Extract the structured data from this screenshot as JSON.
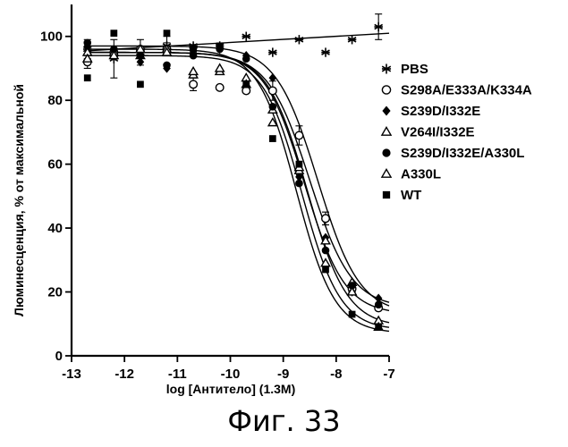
{
  "caption": "Фиг. 33",
  "chart_data": {
    "type": "scatter",
    "xlabel": "log [Антитело] (1.3M)",
    "ylabel": "Люминесценция, % от максимальной",
    "xlim": [
      -13,
      -7
    ],
    "ylim": [
      0,
      110
    ],
    "xticks": [
      -13,
      -12,
      -11,
      -10,
      -9,
      -8,
      -7
    ],
    "xtick_labels": [
      "-13",
      "-12",
      "-11",
      "-10",
      "-9",
      "-8",
      "-7"
    ],
    "yticks": [
      0,
      20,
      40,
      60,
      80,
      100
    ],
    "ytick_labels": [
      "0",
      "20",
      "40",
      "60",
      "80",
      "100"
    ],
    "legend_position": "right",
    "series": [
      {
        "name": "PBS",
        "marker": "asterisk",
        "x": [
          -12.7,
          -12.2,
          -11.7,
          -11.2,
          -10.7,
          -10.2,
          -9.7,
          -9.2,
          -8.7,
          -8.2,
          -7.7,
          -7.2
        ],
        "y": [
          96,
          93,
          95,
          97,
          97,
          97,
          100,
          95,
          99,
          95,
          99,
          103
        ],
        "err": [
          3,
          6,
          4,
          3,
          0,
          0,
          0,
          0,
          0,
          0,
          0,
          4
        ],
        "fit": {
          "type": "linear",
          "x": [
            -12.7,
            -7
          ],
          "y": [
            95.5,
            101
          ]
        }
      },
      {
        "name": "S298A/E333A/K334A",
        "marker": "open-circle",
        "x": [
          -12.7,
          -12.2,
          -11.7,
          -11.2,
          -10.7,
          -10.2,
          -9.7,
          -9.2,
          -8.7,
          -8.2,
          -7.7,
          -7.2
        ],
        "y": [
          92,
          95,
          96,
          96,
          85,
          84,
          83,
          83,
          69,
          43,
          21,
          15
        ],
        "err": [
          2,
          0,
          0,
          2,
          2,
          0,
          0,
          3,
          3,
          2,
          0,
          0
        ],
        "fit": {
          "type": "sigmoid",
          "top": 97,
          "bottom": 13,
          "ec50_log": -8.35,
          "hill": 1.1
        }
      },
      {
        "name": "S239D/I332E",
        "marker": "filled-diamond",
        "x": [
          -12.7,
          -12.2,
          -11.7,
          -11.2,
          -10.7,
          -10.2,
          -9.7,
          -9.2,
          -8.7,
          -8.2,
          -7.7,
          -7.2
        ],
        "y": [
          97,
          94,
          92,
          90,
          96,
          96,
          94,
          87,
          56,
          37,
          20,
          18
        ],
        "err": [
          0,
          0,
          0,
          0,
          0,
          0,
          0,
          0,
          0,
          0,
          0,
          0
        ],
        "fit": {
          "type": "sigmoid",
          "top": 95,
          "bottom": 15,
          "ec50_log": -8.5,
          "hill": 1.1
        }
      },
      {
        "name": "V264I/I332E",
        "marker": "open-triangle",
        "x": [
          -12.7,
          -12.2,
          -11.7,
          -11.2,
          -10.7,
          -10.2,
          -9.7,
          -9.2,
          -8.7,
          -8.2,
          -7.7,
          -7.2
        ],
        "y": [
          95,
          95,
          94,
          96,
          88,
          89,
          87,
          77,
          58,
          36,
          23,
          11
        ],
        "err": [
          0,
          0,
          0,
          0,
          0,
          0,
          0,
          0,
          0,
          0,
          0,
          0
        ],
        "fit": {
          "type": "sigmoid",
          "top": 95,
          "bottom": 9,
          "ec50_log": -8.55,
          "hill": 1.15
        }
      },
      {
        "name": "S239D/I332E/A330L",
        "marker": "filled-circle",
        "x": [
          -12.7,
          -12.2,
          -11.7,
          -11.2,
          -10.7,
          -10.2,
          -9.7,
          -9.2,
          -8.7,
          -8.2,
          -7.7,
          -7.2
        ],
        "y": [
          98,
          96,
          94,
          91,
          94,
          96,
          93,
          78,
          54,
          33,
          22,
          16
        ],
        "err": [
          0,
          0,
          0,
          0,
          0,
          0,
          0,
          0,
          0,
          0,
          0,
          0
        ],
        "fit": {
          "type": "sigmoid",
          "top": 95,
          "bottom": 13,
          "ec50_log": -8.6,
          "hill": 1.15
        }
      },
      {
        "name": "A330L",
        "marker": "open-triangle",
        "x": [
          -12.7,
          -12.2,
          -11.7,
          -11.2,
          -10.7,
          -10.2,
          -9.7,
          -9.2,
          -8.7,
          -8.2,
          -7.7,
          -7.2
        ],
        "y": [
          93,
          94,
          96,
          95,
          89,
          90,
          85,
          73,
          59,
          29,
          20,
          9
        ],
        "err": [
          0,
          0,
          0,
          0,
          0,
          0,
          0,
          0,
          0,
          0,
          0,
          0
        ],
        "fit": {
          "type": "sigmoid",
          "top": 94,
          "bottom": 8,
          "ec50_log": -8.65,
          "hill": 1.2
        }
      },
      {
        "name": "WT",
        "marker": "filled-square",
        "x": [
          -12.7,
          -12.2,
          -11.7,
          -11.2,
          -10.7,
          -10.2,
          -9.7,
          -9.2,
          -8.7,
          -8.2,
          -7.7,
          -7.2
        ],
        "y": [
          87,
          101,
          85,
          101,
          96,
          97,
          85,
          68,
          60,
          27,
          13,
          9
        ],
        "err": [
          0,
          0,
          0,
          0,
          0,
          0,
          0,
          0,
          0,
          0,
          0,
          0
        ],
        "fit": {
          "type": "sigmoid",
          "top": 96,
          "bottom": 7,
          "ec50_log": -8.75,
          "hill": 1.2
        }
      }
    ]
  }
}
